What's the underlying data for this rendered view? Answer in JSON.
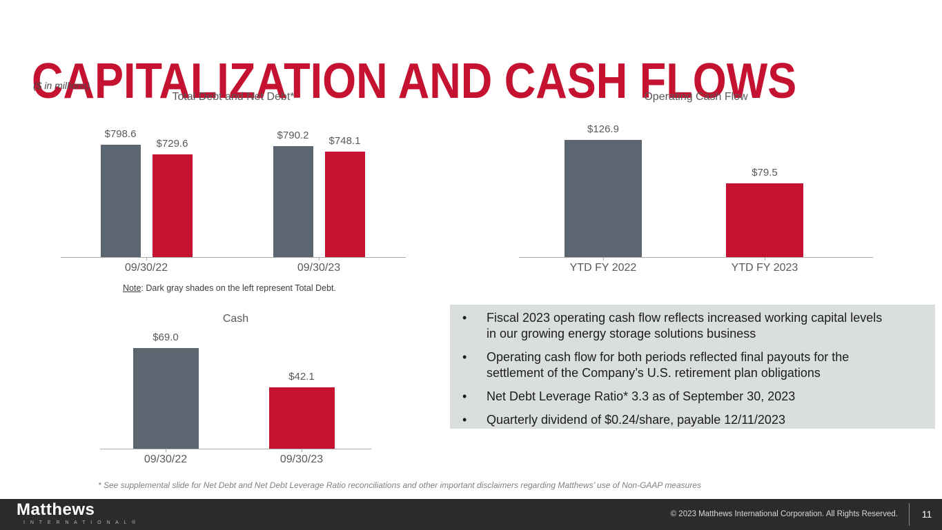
{
  "slide": {
    "title": "CAPITALIZATION AND CASH FLOWS",
    "units_note": "($ in millions)",
    "footnote": "* See supplemental slide for Net Debt and Net Debt Leverage Ratio reconciliations and other important disclaimers regarding Matthews’ use of Non-GAAP measures"
  },
  "colors": {
    "title_red": "#c41230",
    "bar_gray": "#5b6670",
    "bar_red": "#c51230",
    "bullet_box_bg": "#dbdedf",
    "footer_bg": "#2d2b2a",
    "chart_text": "#595959"
  },
  "chart_data": [
    {
      "id": "total-debt-and-net-debt",
      "type": "bar",
      "title": "Total Debt and Net Debt*",
      "categories": [
        "09/30/22",
        "09/30/23"
      ],
      "series": [
        {
          "name": "Total Debt",
          "color": "#5b6670",
          "values": [
            798.6,
            790.2
          ],
          "labels": [
            "$798.6",
            "$790.2"
          ]
        },
        {
          "name": "Net Debt",
          "color": "#c51230",
          "values": [
            729.6,
            748.1
          ],
          "labels": [
            "$729.6",
            "$748.1"
          ]
        }
      ],
      "ylim": [
        0,
        800
      ],
      "y_axis_visible": false,
      "grid": false,
      "legend": "none",
      "note": {
        "label": "Note",
        "text": ": Dark gray shades on the left represent Total Debt."
      }
    },
    {
      "id": "operating-cash-flow",
      "type": "bar",
      "title": "Operating Cash Flow",
      "categories": [
        "YTD FY 2022",
        "YTD FY 2023"
      ],
      "series": [
        {
          "name": "Operating Cash Flow",
          "colors": [
            "#5b6670",
            "#c51230"
          ],
          "values": [
            126.9,
            79.5
          ],
          "labels": [
            "$126.9",
            "$79.5"
          ]
        }
      ],
      "ylim": [
        0,
        130
      ],
      "y_axis_visible": false,
      "grid": false,
      "legend": "none"
    },
    {
      "id": "cash",
      "type": "bar",
      "title": "Cash",
      "categories": [
        "09/30/22",
        "09/30/23"
      ],
      "series": [
        {
          "name": "Cash",
          "colors": [
            "#5b6670",
            "#c51230"
          ],
          "values": [
            69.0,
            42.1
          ],
          "labels": [
            "$69.0",
            "$42.1"
          ]
        }
      ],
      "ylim": [
        0,
        70
      ],
      "y_axis_visible": false,
      "grid": false,
      "legend": "none"
    }
  ],
  "highlights": [
    "Fiscal 2023 operating cash flow reflects increased working capital levels in our growing energy storage solutions business",
    "Operating cash flow for both periods reflected final payouts for the settlement of the Company’s U.S. retirement plan obligations",
    "Net Debt Leverage Ratio* 3.3 as of September 30, 2023",
    "Quarterly dividend of $0.24/share, payable 12/11/2023"
  ],
  "footer": {
    "logo_primary": "Matthews",
    "logo_secondary": "I N T E R N A T I O N A L ®",
    "copyright": "© 2023 Matthews International Corporation. All Rights Reserved.",
    "page_number": "11"
  }
}
